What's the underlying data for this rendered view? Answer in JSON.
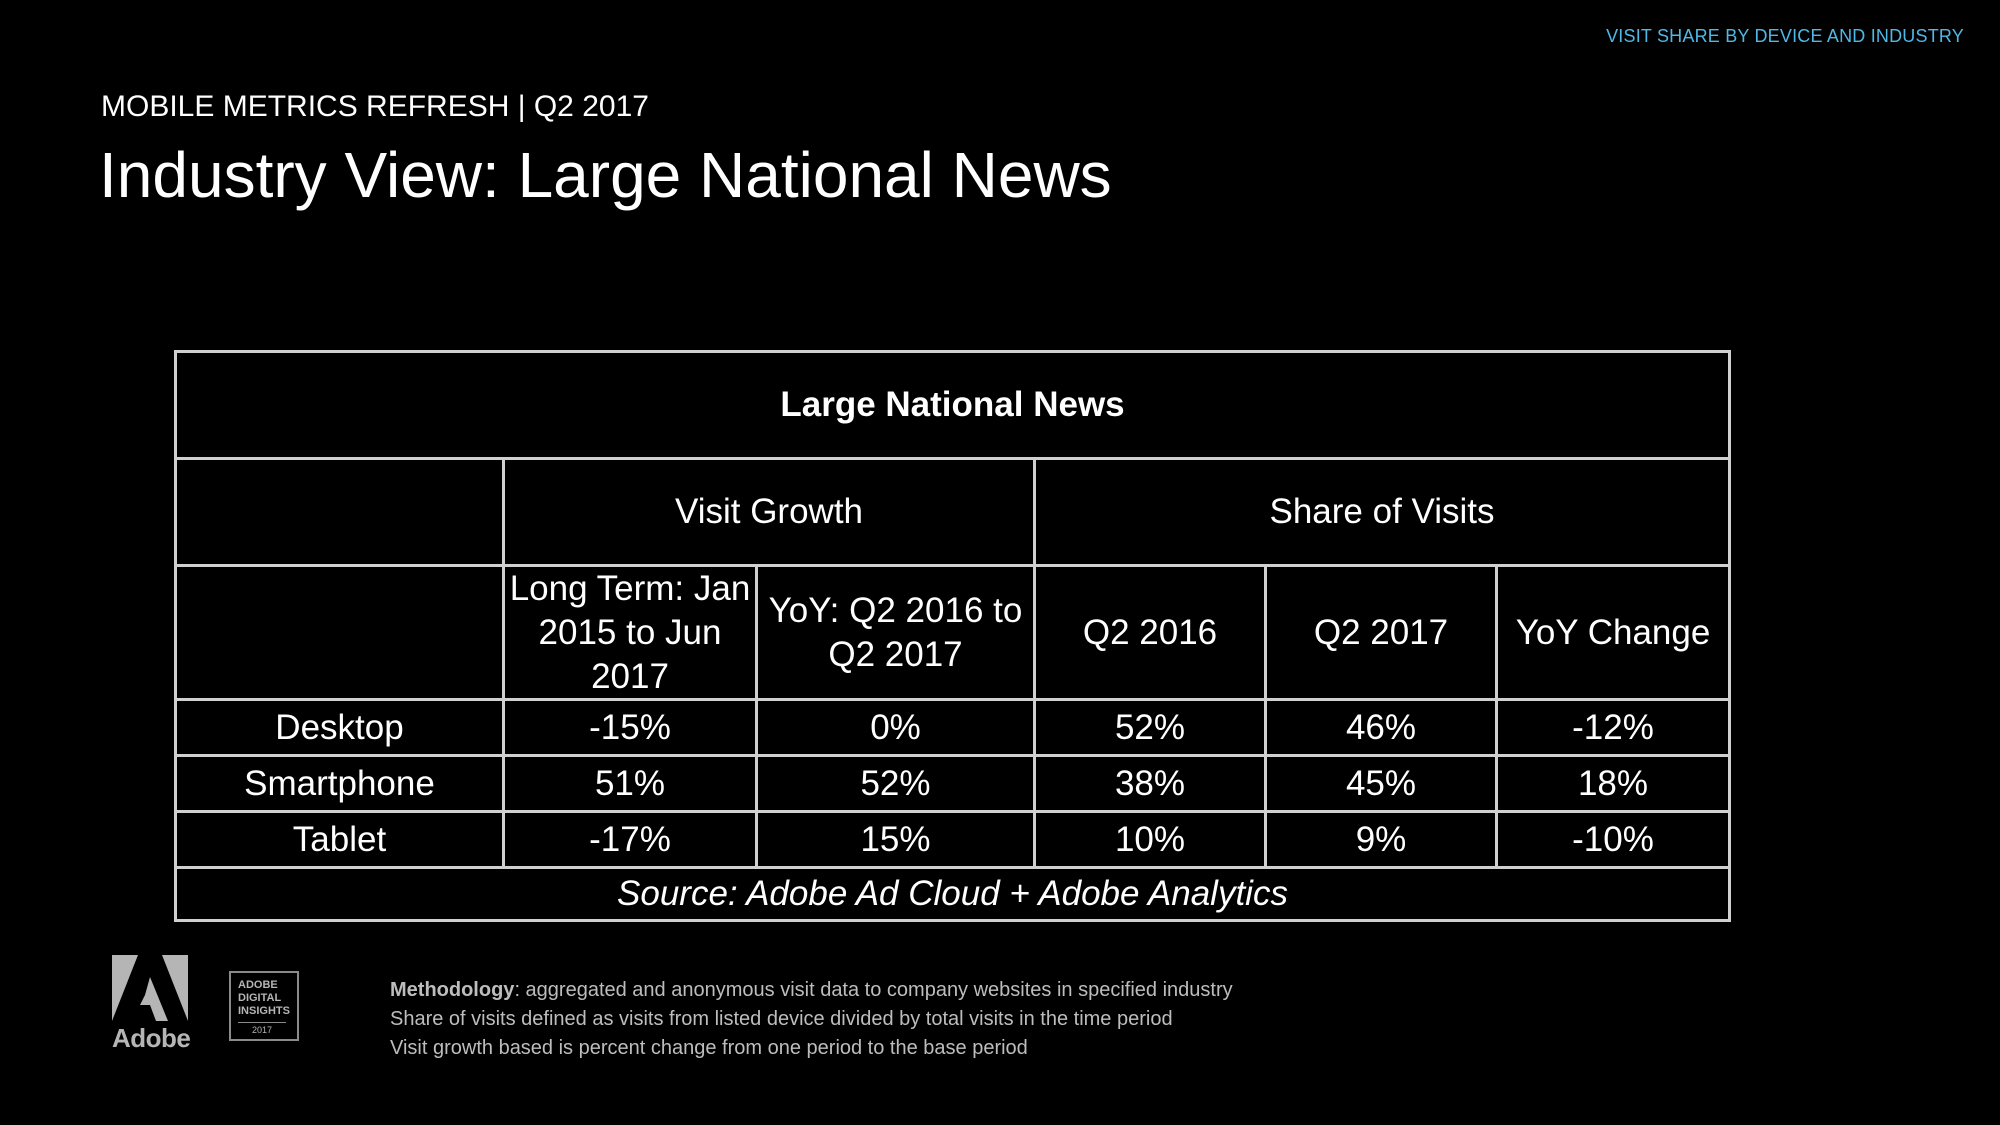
{
  "header": {
    "section_tag": "VISIT SHARE BY DEVICE AND INDUSTRY",
    "eyebrow": "MOBILE METRICS REFRESH | Q2 2017",
    "title": "Industry View: Large National News"
  },
  "table": {
    "title": "Large National News",
    "groups": {
      "visit_growth": "Visit Growth",
      "share_of_visits": "Share of Visits"
    },
    "columns": {
      "long_term": "Long Term: Jan 2015 to Jun 2017",
      "yoy_growth": "YoY: Q2 2016 to Q2 2017",
      "q2_2016": "Q2 2016",
      "q2_2017": "Q2 2017",
      "yoy_change": "YoY Change"
    },
    "rows": [
      {
        "device": "Desktop",
        "long_term": "-15%",
        "yoy_growth": "0%",
        "q2_2016": "52%",
        "q2_2017": "46%",
        "yoy_change": "-12%"
      },
      {
        "device": "Smartphone",
        "long_term": "51%",
        "yoy_growth": "52%",
        "q2_2016": "38%",
        "q2_2017": "45%",
        "yoy_change": "18%"
      },
      {
        "device": "Tablet",
        "long_term": "-17%",
        "yoy_growth": "15%",
        "q2_2016": "10%",
        "q2_2017": "9%",
        "yoy_change": "-10%"
      }
    ],
    "source": "Source: Adobe Ad Cloud + Adobe Analytics"
  },
  "footer": {
    "logo_text": "Adobe",
    "badge_lines": [
      "ADOBE",
      "DIGITAL",
      "INSIGHTS"
    ],
    "badge_year": "2017",
    "methodology_label": "Methodology",
    "methodology_text": ": aggregated and anonymous visit data to company websites in specified industry",
    "note_share": "Share of visits defined as visits from listed device divided by total visits in the time period",
    "note_growth": "Visit growth based is percent change from one period to the base period"
  },
  "colors": {
    "accent_green": "#2ee08f",
    "negative_pink": "#ff2e93",
    "tag_blue": "#4fb8e6",
    "background": "#000000"
  },
  "icons": {
    "logo": "adobe-logo-icon",
    "badge": "adobe-digital-insights-badge"
  }
}
